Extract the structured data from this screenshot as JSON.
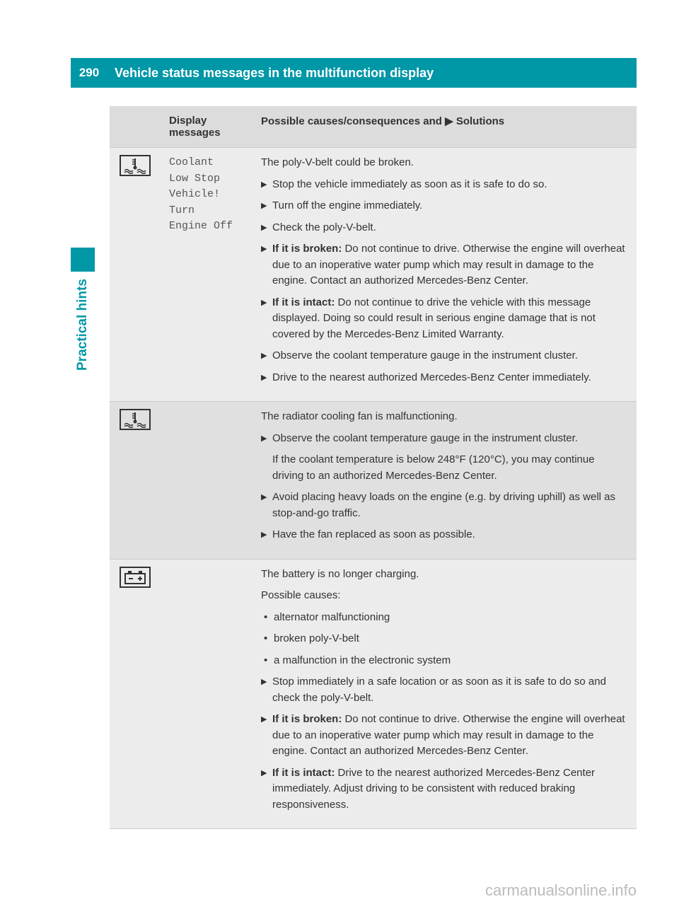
{
  "page_number": "290",
  "header_title": "Vehicle status messages in the multifunction display",
  "side_label": "Practical hints",
  "table": {
    "header": {
      "col1": "Display messages",
      "col2": "Possible causes/consequences and ▶ Solutions"
    },
    "rows": [
      {
        "icon": "coolant-temp-icon",
        "message": "Coolant\nLow Stop\nVehicle!\nTurn\nEngine Off",
        "intro": "The poly-V-belt could be broken.",
        "steps": [
          {
            "type": "step",
            "text": "Stop the vehicle immediately as soon as it is safe to do so."
          },
          {
            "type": "step",
            "text": "Turn off the engine immediately."
          },
          {
            "type": "step",
            "text": "Check the poly-V-belt."
          },
          {
            "type": "step",
            "bold_prefix": "If it is broken: ",
            "text": "Do not continue to drive. Otherwise the engine will overheat due to an inoperative water pump which may result in damage to the engine. Contact an authorized Mercedes-Benz Center."
          },
          {
            "type": "step",
            "bold_prefix": "If it is intact: ",
            "text": "Do not continue to drive the vehicle with this message displayed. Doing so could result in serious engine damage that is not covered by the Mercedes-Benz Limited Warranty."
          },
          {
            "type": "step",
            "text": "Observe the coolant temperature gauge in the instrument cluster."
          },
          {
            "type": "step",
            "text": "Drive to the nearest authorized Mercedes-Benz Center immediately."
          }
        ]
      },
      {
        "icon": "coolant-temp-icon",
        "message": "",
        "intro": "The radiator cooling fan is malfunctioning.",
        "steps": [
          {
            "type": "step",
            "text": "Observe the coolant temperature gauge in the instrument cluster."
          },
          {
            "type": "plain",
            "text": "If the coolant temperature is below 248°F (120°C), you may continue driving to an authorized Mercedes-Benz Center."
          },
          {
            "type": "step",
            "text": "Avoid placing heavy loads on the engine (e.g. by driving uphill) as well as stop-and-go traffic."
          },
          {
            "type": "step",
            "text": "Have the fan replaced as soon as possible."
          }
        ]
      },
      {
        "icon": "battery-icon",
        "message": "",
        "intro": "The battery is no longer charging.",
        "sub_intro": "Possible causes:",
        "bullets": [
          "alternator malfunctioning",
          "broken poly-V-belt",
          "a malfunction in the electronic system"
        ],
        "steps": [
          {
            "type": "step",
            "text": "Stop immediately in a safe location or as soon as it is safe to do so and check the poly-V-belt."
          },
          {
            "type": "step",
            "bold_prefix": "If it is broken: ",
            "text": "Do not continue to drive. Otherwise the engine will overheat due to an inoperative water pump which may result in damage to the engine. Contact an authorized Mercedes-Benz Center."
          },
          {
            "type": "step",
            "bold_prefix": "If it is intact: ",
            "text": "Drive to the nearest authorized Mercedes-Benz Center immediately. Adjust driving to be consistent with reduced braking responsiveness."
          }
        ]
      }
    ]
  },
  "watermark": "carmanualsonline.info",
  "colors": {
    "teal": "#0097a7",
    "row_light": "#ececec",
    "row_dark": "#e0e0e0",
    "header_row": "#dcdcdc",
    "text": "#333333"
  }
}
